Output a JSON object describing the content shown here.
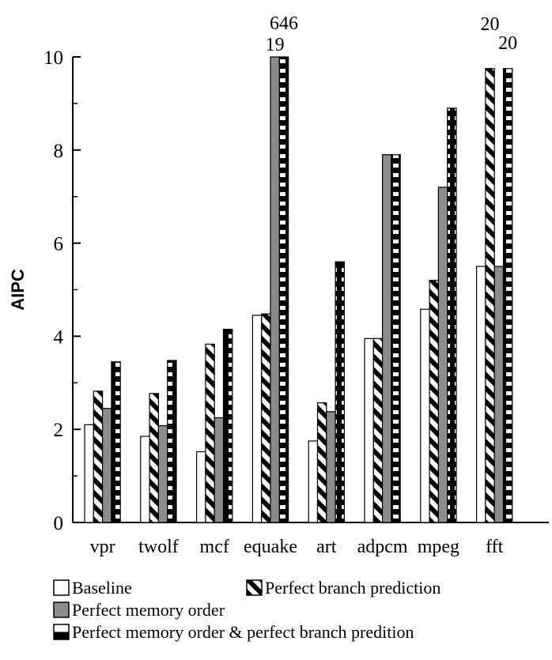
{
  "chart_data": {
    "type": "bar",
    "ylabel": "AIPC",
    "ylim": [
      0,
      10
    ],
    "yticks": [
      "0",
      "2",
      "4",
      "6",
      "8",
      "10"
    ],
    "categories": [
      "vpr",
      "twolf",
      "mcf",
      "equake",
      "art",
      "adpcm",
      "mpeg",
      "fft"
    ],
    "series": [
      {
        "name": "Baseline",
        "pattern": "white",
        "values": [
          2.1,
          1.85,
          1.52,
          4.45,
          1.75,
          3.95,
          4.58,
          5.5
        ]
      },
      {
        "name": "Perfect branch prediction",
        "pattern": "diagonal",
        "values": [
          2.82,
          2.77,
          3.83,
          4.48,
          2.57,
          3.95,
          5.2,
          9.75
        ]
      },
      {
        "name": "Perfect memory order",
        "pattern": "gray",
        "values": [
          2.45,
          2.08,
          2.25,
          10,
          2.38,
          7.9,
          7.2,
          5.5
        ]
      },
      {
        "name": "Perfect memory order & perfect branch predition",
        "pattern": "horizontal",
        "values": [
          3.45,
          3.48,
          4.15,
          10,
          5.6,
          7.9,
          8.9,
          9.75
        ]
      }
    ],
    "overflow_labels": [
      {
        "category": "equake",
        "series": "Perfect memory order",
        "text": "19"
      },
      {
        "category": "equake",
        "series": "Perfect memory order & perfect branch predition",
        "text": "646"
      },
      {
        "category": "fft",
        "series": "Perfect branch prediction",
        "text": "20"
      },
      {
        "category": "fft",
        "series": "Perfect memory order & perfect branch predition",
        "text": "20"
      }
    ],
    "legend": {
      "rows": [
        [
          "Baseline",
          "Perfect branch prediction"
        ],
        [
          "Perfect memory order"
        ],
        [
          "Perfect memory order & perfect branch predition"
        ]
      ]
    },
    "colors": {
      "gray": "#8c8c8c",
      "black": "#000000",
      "white": "#ffffff"
    }
  }
}
